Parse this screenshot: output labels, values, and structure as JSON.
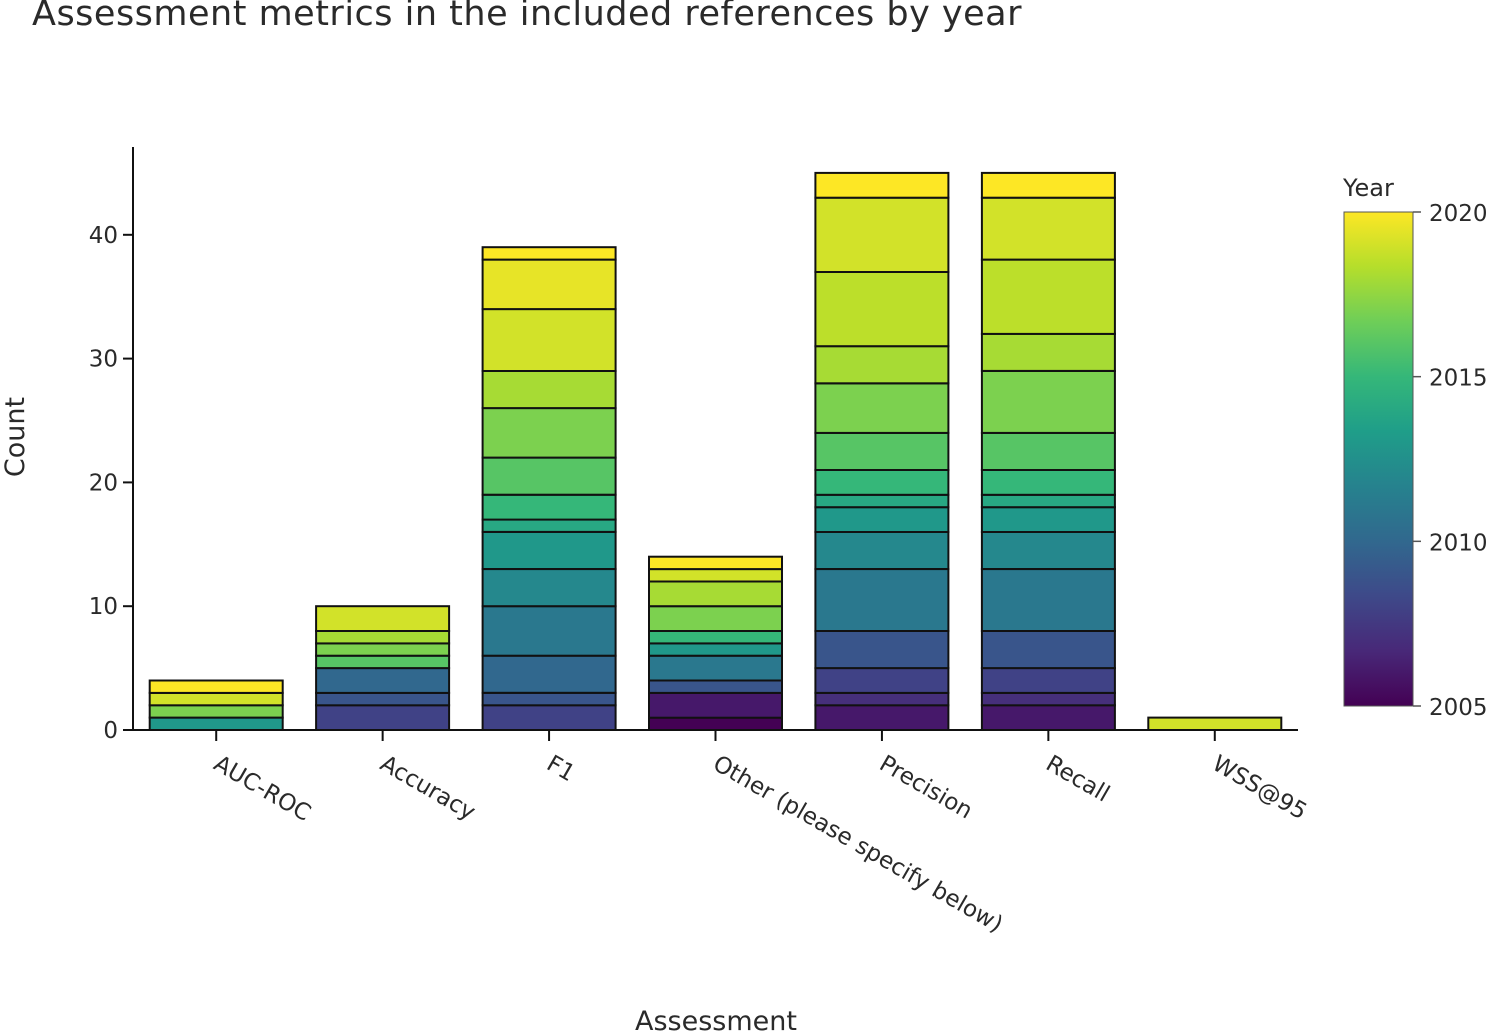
{
  "chart_data": {
    "type": "bar",
    "stacked": true,
    "title": "Assessment metrics in the included references by year",
    "xlabel": "Assessment",
    "ylabel": "Count",
    "ylim": [
      0,
      47.3
    ],
    "yticks": [
      0,
      10,
      20,
      30,
      40
    ],
    "categories": [
      "AUC-ROC",
      "Accuracy",
      "F1",
      "Other (please specify below)",
      "Precision",
      "Recall",
      "WSS@95"
    ],
    "color_scale": "viridis",
    "colorbar": {
      "title": "Year",
      "min": 2005,
      "max": 2020,
      "ticks": [
        2005,
        2010,
        2015,
        2020
      ]
    },
    "stacks": [
      {
        "category": "AUC-ROC",
        "segments": [
          {
            "year": 2013,
            "value": 1
          },
          {
            "year": 2017,
            "value": 1
          },
          {
            "year": 2019,
            "value": 1
          },
          {
            "year": 2020,
            "value": 1
          }
        ]
      },
      {
        "category": "Accuracy",
        "segments": [
          {
            "year": 2008,
            "value": 2
          },
          {
            "year": 2009,
            "value": 1
          },
          {
            "year": 2010,
            "value": 2
          },
          {
            "year": 2016,
            "value": 1
          },
          {
            "year": 2017,
            "value": 1
          },
          {
            "year": 2018,
            "value": 1
          },
          {
            "year": 2019,
            "value": 2
          }
        ]
      },
      {
        "category": "F1",
        "segments": [
          {
            "year": 2008,
            "value": 2
          },
          {
            "year": 2009,
            "value": 1
          },
          {
            "year": 2010,
            "value": 3
          },
          {
            "year": 2011,
            "value": 4
          },
          {
            "year": 2012,
            "value": 3
          },
          {
            "year": 2013,
            "value": 3
          },
          {
            "year": 2014,
            "value": 1
          },
          {
            "year": 2015,
            "value": 2
          },
          {
            "year": 2016,
            "value": 3
          },
          {
            "year": 2017,
            "value": 4
          },
          {
            "year": 2018,
            "value": 3
          },
          {
            "year": 2019,
            "value": 5
          },
          {
            "year": 2019.5,
            "value": 4
          },
          {
            "year": 2020,
            "value": 1
          }
        ]
      },
      {
        "category": "Other (please specify below)",
        "segments": [
          {
            "year": 2005,
            "value": 1
          },
          {
            "year": 2006,
            "value": 2
          },
          {
            "year": 2009,
            "value": 1
          },
          {
            "year": 2011,
            "value": 2
          },
          {
            "year": 2013,
            "value": 1
          },
          {
            "year": 2015,
            "value": 1
          },
          {
            "year": 2017,
            "value": 2
          },
          {
            "year": 2018,
            "value": 2
          },
          {
            "year": 2019,
            "value": 1
          },
          {
            "year": 2020,
            "value": 1
          }
        ]
      },
      {
        "category": "Precision",
        "segments": [
          {
            "year": 2006,
            "value": 2
          },
          {
            "year": 2007,
            "value": 1
          },
          {
            "year": 2008,
            "value": 2
          },
          {
            "year": 2009,
            "value": 3
          },
          {
            "year": 2011,
            "value": 5
          },
          {
            "year": 2012,
            "value": 3
          },
          {
            "year": 2013,
            "value": 2
          },
          {
            "year": 2014,
            "value": 1
          },
          {
            "year": 2015,
            "value": 2
          },
          {
            "year": 2016,
            "value": 3
          },
          {
            "year": 2017,
            "value": 4
          },
          {
            "year": 2018,
            "value": 3
          },
          {
            "year": 2018.5,
            "value": 6
          },
          {
            "year": 2019,
            "value": 6
          },
          {
            "year": 2020,
            "value": 2
          }
        ]
      },
      {
        "category": "Recall",
        "segments": [
          {
            "year": 2006,
            "value": 2
          },
          {
            "year": 2007,
            "value": 1
          },
          {
            "year": 2008,
            "value": 2
          },
          {
            "year": 2009,
            "value": 3
          },
          {
            "year": 2011,
            "value": 5
          },
          {
            "year": 2012,
            "value": 3
          },
          {
            "year": 2013,
            "value": 2
          },
          {
            "year": 2014,
            "value": 1
          },
          {
            "year": 2015,
            "value": 2
          },
          {
            "year": 2016,
            "value": 3
          },
          {
            "year": 2017,
            "value": 5
          },
          {
            "year": 2018,
            "value": 3
          },
          {
            "year": 2018.5,
            "value": 6
          },
          {
            "year": 2019,
            "value": 5
          },
          {
            "year": 2020,
            "value": 2
          }
        ]
      },
      {
        "category": "WSS@95",
        "segments": [
          {
            "year": 2019,
            "value": 1
          }
        ]
      }
    ]
  }
}
